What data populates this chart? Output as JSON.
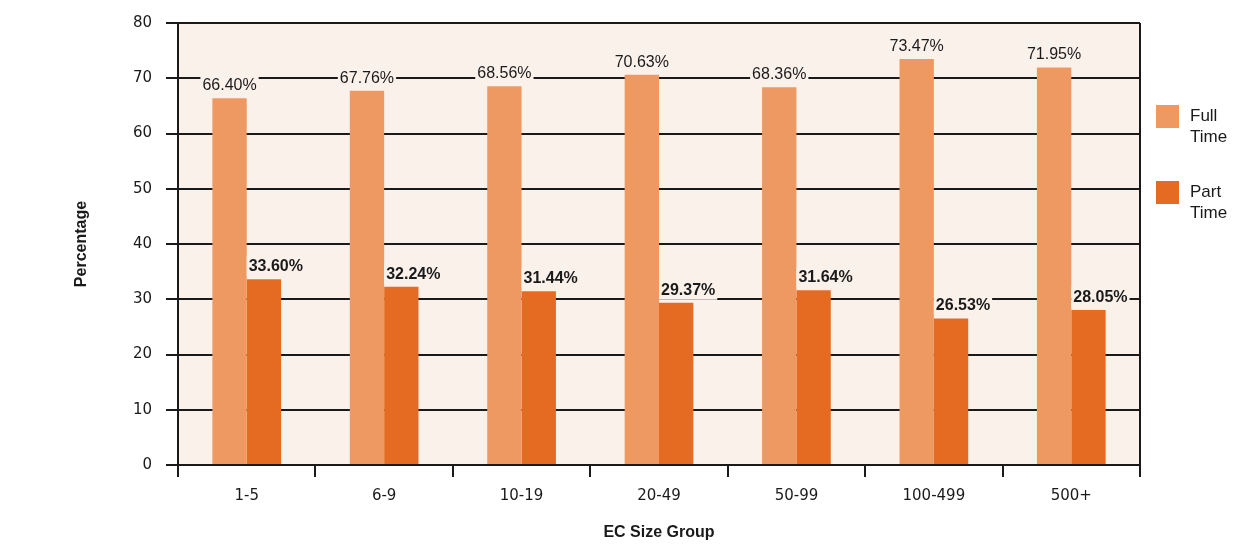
{
  "chart_data": {
    "type": "bar",
    "xlabel": "EC Size Group",
    "ylabel": "Percentage",
    "categories": [
      "1-5",
      "6-9",
      "10-19",
      "20-49",
      "50-99",
      "100-499",
      "500+"
    ],
    "series": [
      {
        "name": "Full Time",
        "color": "#ef9962",
        "values": [
          66.4,
          67.76,
          68.56,
          70.63,
          68.36,
          73.47,
          71.95
        ],
        "value_labels": [
          "66.40%",
          "67.76%",
          "68.56%",
          "70.63%",
          "68.36%",
          "73.47%",
          "71.95%"
        ]
      },
      {
        "name": "Part Time",
        "color": "#e66b22",
        "values": [
          33.6,
          32.24,
          31.44,
          29.37,
          31.64,
          26.53,
          28.05
        ],
        "value_labels": [
          "33.60%",
          "32.24%",
          "31.44%",
          "29.37%",
          "31.64%",
          "26.53%",
          "28.05%"
        ]
      }
    ],
    "ylim": [
      0,
      80
    ],
    "yticks": [
      0,
      10,
      20,
      30,
      40,
      50,
      60,
      70,
      80
    ],
    "grid": "y",
    "legend": "right"
  }
}
